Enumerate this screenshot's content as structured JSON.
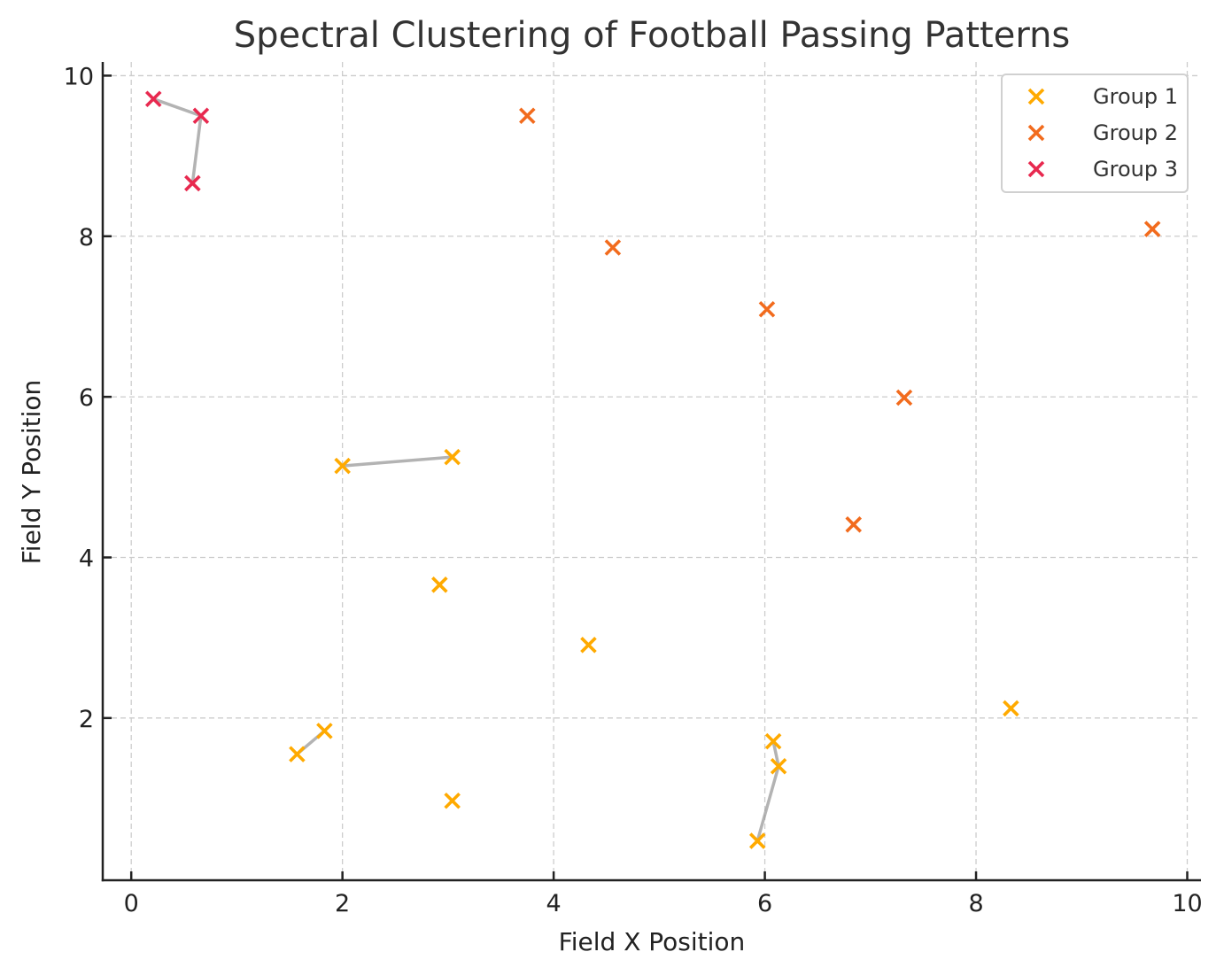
{
  "chart_data": {
    "type": "scatter",
    "title": "Spectral Clustering of Football Passing Patterns",
    "xlabel": "Field X Position",
    "ylabel": "Field Y Position",
    "xlim": [
      -0.27,
      10.13
    ],
    "ylim": [
      -0.02,
      10.17
    ],
    "xticks": [
      0,
      2,
      4,
      6,
      8,
      10
    ],
    "yticks": [
      2,
      4,
      6,
      8,
      10
    ],
    "xtick_labels": [
      "0",
      "2",
      "4",
      "6",
      "8",
      "10"
    ],
    "ytick_labels": [
      "2",
      "4",
      "6",
      "8",
      "10"
    ],
    "grid": true,
    "legend_position": "top-right",
    "marker": "x",
    "series": [
      {
        "name": "Group 1",
        "color": "#FFAA00",
        "points": [
          {
            "x": 2.0,
            "y": 5.14
          },
          {
            "x": 3.04,
            "y": 5.25
          },
          {
            "x": 2.92,
            "y": 3.66
          },
          {
            "x": 4.33,
            "y": 2.91
          },
          {
            "x": 8.33,
            "y": 2.12
          },
          {
            "x": 1.57,
            "y": 1.55
          },
          {
            "x": 1.83,
            "y": 1.84
          },
          {
            "x": 3.04,
            "y": 0.97
          },
          {
            "x": 6.08,
            "y": 1.71
          },
          {
            "x": 6.13,
            "y": 1.4
          },
          {
            "x": 5.93,
            "y": 0.47
          }
        ]
      },
      {
        "name": "Group 2",
        "color": "#F26B1D",
        "points": [
          {
            "x": 3.75,
            "y": 9.5
          },
          {
            "x": 4.56,
            "y": 7.86
          },
          {
            "x": 6.02,
            "y": 7.09
          },
          {
            "x": 7.32,
            "y": 5.99
          },
          {
            "x": 6.84,
            "y": 4.41
          },
          {
            "x": 9.67,
            "y": 8.09
          }
        ]
      },
      {
        "name": "Group 3",
        "color": "#E8294F",
        "points": [
          {
            "x": 0.21,
            "y": 9.71
          },
          {
            "x": 0.66,
            "y": 9.5
          },
          {
            "x": 0.58,
            "y": 8.66
          }
        ]
      }
    ],
    "connections": [
      {
        "path": [
          [
            0.21,
            9.71
          ],
          [
            0.66,
            9.5
          ],
          [
            0.58,
            8.66
          ]
        ]
      },
      {
        "path": [
          [
            2.0,
            5.14
          ],
          [
            3.04,
            5.25
          ]
        ]
      },
      {
        "path": [
          [
            1.57,
            1.55
          ],
          [
            1.83,
            1.84
          ]
        ]
      },
      {
        "path": [
          [
            6.08,
            1.71
          ],
          [
            6.13,
            1.4
          ],
          [
            5.93,
            0.47
          ]
        ]
      }
    ]
  }
}
